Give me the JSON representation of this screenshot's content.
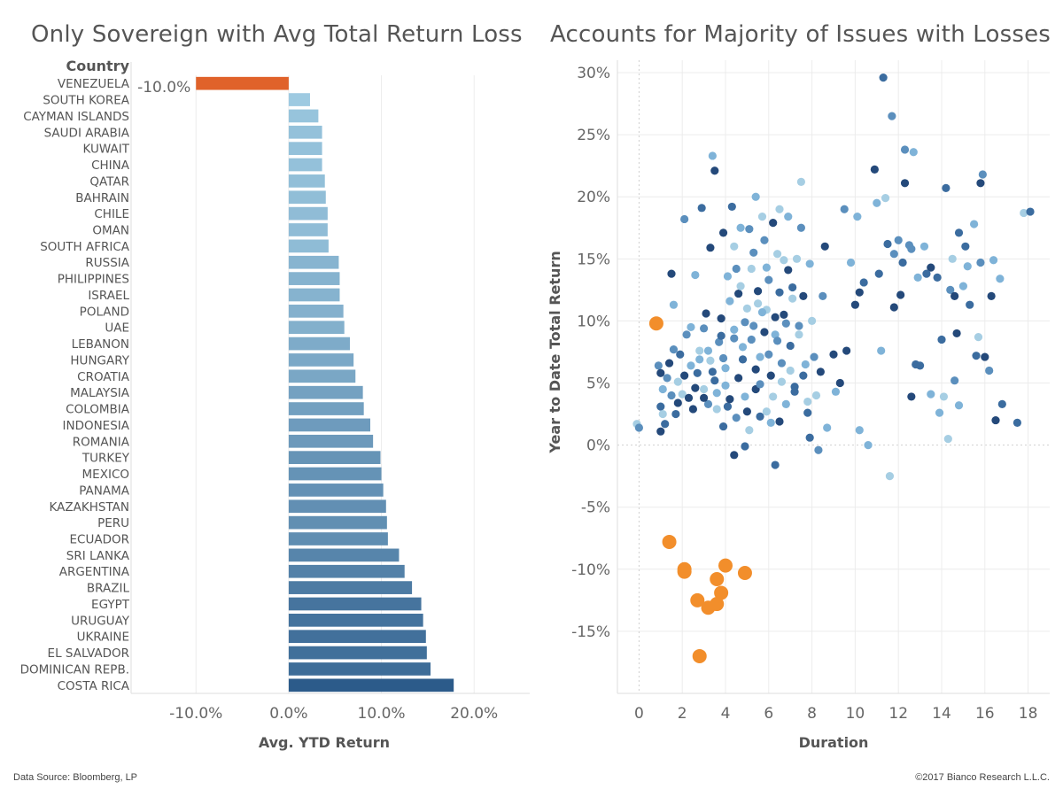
{
  "left_title": "Only Sovereign with Avg Total Return Loss",
  "right_title": "Accounts for Majority of Issues with Losses",
  "footer": {
    "source": "Data Source: Bloomberg, LP",
    "copyright": "©2017 Bianco Research L.L.C."
  },
  "colors": {
    "highlight": "#e0622a",
    "scatter_highlight": "#f28e2b",
    "bar_light": "#9ecae1",
    "bar_dark": "#2c5b8a"
  },
  "chart_data": [
    {
      "type": "bar",
      "orientation": "horizontal",
      "title": "Only Sovereign with Avg Total Return Loss",
      "row_header": "Country",
      "xlabel": "Avg. YTD Return",
      "xlim": [
        -17,
        26
      ],
      "x_ticks": [
        "-10.0%",
        "0.0%",
        "10.0%",
        "20.0%"
      ],
      "x_tick_values": [
        -10,
        0,
        10,
        20
      ],
      "data_label": "-10.0%",
      "grid": true,
      "categories": [
        "VENEZUELA",
        "SOUTH KOREA",
        "CAYMAN ISLANDS",
        "SAUDI ARABIA",
        "KUWAIT",
        "CHINA",
        "QATAR",
        "BAHRAIN",
        "CHILE",
        "OMAN",
        "SOUTH AFRICA",
        "RUSSIA",
        "PHILIPPINES",
        "ISRAEL",
        "POLAND",
        "UAE",
        "LEBANON",
        "HUNGARY",
        "CROATIA",
        "MALAYSIA",
        "COLOMBIA",
        "INDONESIA",
        "ROMANIA",
        "TURKEY",
        "MEXICO",
        "PANAMA",
        "KAZAKHSTAN",
        "PERU",
        "ECUADOR",
        "SRI LANKA",
        "ARGENTINA",
        "BRAZIL",
        "EGYPT",
        "URUGUAY",
        "UKRAINE",
        "EL SALVADOR",
        "DOMINICAN REPB.",
        "COSTA RICA"
      ],
      "values": [
        -10.0,
        2.3,
        3.2,
        3.6,
        3.6,
        3.6,
        3.9,
        4.0,
        4.2,
        4.2,
        4.3,
        5.4,
        5.5,
        5.5,
        5.9,
        6.0,
        6.6,
        7.0,
        7.2,
        8.0,
        8.1,
        8.8,
        9.1,
        9.9,
        10.0,
        10.2,
        10.5,
        10.6,
        10.7,
        11.9,
        12.5,
        13.3,
        14.3,
        14.5,
        14.8,
        14.9,
        15.3,
        17.8
      ]
    },
    {
      "type": "scatter",
      "title": "Accounts for Majority of Issues with Losses",
      "xlabel": "Duration",
      "ylabel": "Year to Date Total Return",
      "xlim": [
        -1,
        19
      ],
      "ylim": [
        -20,
        31
      ],
      "x_ticks": [
        "0",
        "2",
        "4",
        "6",
        "8",
        "10",
        "12",
        "14",
        "16",
        "18"
      ],
      "x_tick_values": [
        0,
        2,
        4,
        6,
        8,
        10,
        12,
        14,
        16,
        18
      ],
      "y_ticks": [
        "30%",
        "25%",
        "20%",
        "15%",
        "10%",
        "5%",
        "0%",
        "-5%",
        "-10%",
        "-15%"
      ],
      "y_tick_values": [
        30,
        25,
        20,
        15,
        10,
        5,
        0,
        -5,
        -10,
        -15
      ],
      "grid": true,
      "highlight_points": [
        [
          0.8,
          9.8
        ],
        [
          1.4,
          -7.8
        ],
        [
          2.1,
          -10.0
        ],
        [
          2.1,
          -10.2
        ],
        [
          4.0,
          -9.7
        ],
        [
          3.6,
          -10.8
        ],
        [
          4.9,
          -10.3
        ],
        [
          3.8,
          -11.9
        ],
        [
          2.7,
          -12.5
        ],
        [
          3.2,
          -13.1
        ],
        [
          3.6,
          -12.8
        ],
        [
          2.8,
          -17.0
        ]
      ],
      "points": [
        [
          -0.1,
          1.7
        ],
        [
          0.0,
          1.4
        ],
        [
          0.9,
          6.4
        ],
        [
          1.0,
          5.8
        ],
        [
          1.1,
          4.5
        ],
        [
          1.0,
          3.1
        ],
        [
          1.1,
          2.5
        ],
        [
          1.2,
          1.7
        ],
        [
          1.0,
          1.1
        ],
        [
          1.3,
          5.4
        ],
        [
          1.4,
          6.6
        ],
        [
          1.5,
          4.0
        ],
        [
          1.5,
          13.8
        ],
        [
          1.6,
          11.3
        ],
        [
          1.7,
          2.5
        ],
        [
          1.8,
          5.1
        ],
        [
          1.9,
          7.3
        ],
        [
          2.0,
          4.1
        ],
        [
          2.1,
          18.2
        ],
        [
          2.1,
          5.6
        ],
        [
          2.2,
          8.9
        ],
        [
          2.3,
          3.8
        ],
        [
          2.4,
          6.4
        ],
        [
          2.5,
          2.9
        ],
        [
          2.6,
          13.7
        ],
        [
          2.7,
          5.8
        ],
        [
          2.8,
          7.6
        ],
        [
          2.9,
          19.1
        ],
        [
          3.0,
          4.5
        ],
        [
          3.0,
          9.4
        ],
        [
          3.1,
          10.6
        ],
        [
          3.2,
          3.3
        ],
        [
          3.3,
          15.9
        ],
        [
          3.4,
          23.3
        ],
        [
          3.5,
          22.1
        ],
        [
          3.3,
          6.8
        ],
        [
          3.5,
          5.2
        ],
        [
          3.6,
          2.9
        ],
        [
          3.7,
          8.3
        ],
        [
          3.8,
          10.2
        ],
        [
          3.9,
          7.0
        ],
        [
          3.9,
          17.1
        ],
        [
          4.0,
          4.8
        ],
        [
          4.1,
          3.1
        ],
        [
          4.2,
          11.6
        ],
        [
          4.3,
          19.2
        ],
        [
          4.4,
          16.0
        ],
        [
          4.4,
          8.6
        ],
        [
          4.4,
          -0.8
        ],
        [
          4.5,
          14.2
        ],
        [
          4.6,
          12.2
        ],
        [
          4.7,
          17.5
        ],
        [
          4.8,
          6.9
        ],
        [
          4.9,
          3.9
        ],
        [
          4.9,
          -0.1
        ],
        [
          5.0,
          11.0
        ],
        [
          5.1,
          17.4
        ],
        [
          5.2,
          14.2
        ],
        [
          5.3,
          9.6
        ],
        [
          5.4,
          4.5
        ],
        [
          5.4,
          20.0
        ],
        [
          5.5,
          12.4
        ],
        [
          5.6,
          7.1
        ],
        [
          5.6,
          2.3
        ],
        [
          5.7,
          18.4
        ],
        [
          5.8,
          16.5
        ],
        [
          5.9,
          10.9
        ],
        [
          6.0,
          13.3
        ],
        [
          6.1,
          5.6
        ],
        [
          6.1,
          1.8
        ],
        [
          6.2,
          17.9
        ],
        [
          6.3,
          8.9
        ],
        [
          6.3,
          -1.6
        ],
        [
          6.4,
          15.4
        ],
        [
          6.5,
          12.3
        ],
        [
          6.5,
          19.0
        ],
        [
          6.6,
          6.6
        ],
        [
          6.7,
          10.5
        ],
        [
          6.8,
          3.3
        ],
        [
          6.9,
          14.1
        ],
        [
          6.9,
          18.4
        ],
        [
          7.0,
          8.0
        ],
        [
          7.1,
          11.8
        ],
        [
          7.2,
          4.3
        ],
        [
          7.3,
          15.0
        ],
        [
          7.4,
          9.6
        ],
        [
          7.5,
          21.2
        ],
        [
          7.5,
          17.5
        ],
        [
          7.6,
          12.0
        ],
        [
          7.7,
          6.5
        ],
        [
          7.8,
          2.6
        ],
        [
          7.9,
          14.6
        ],
        [
          7.9,
          0.6
        ],
        [
          8.0,
          10.0
        ],
        [
          8.1,
          7.1
        ],
        [
          8.2,
          4.0
        ],
        [
          8.3,
          -0.4
        ],
        [
          8.4,
          5.9
        ],
        [
          8.5,
          12.0
        ],
        [
          8.6,
          16.0
        ],
        [
          8.7,
          1.4
        ],
        [
          9.0,
          7.3
        ],
        [
          9.1,
          4.3
        ],
        [
          9.3,
          5.0
        ],
        [
          9.5,
          19.0
        ],
        [
          9.6,
          7.6
        ],
        [
          9.8,
          14.7
        ],
        [
          10.0,
          11.3
        ],
        [
          10.1,
          18.4
        ],
        [
          10.2,
          12.3
        ],
        [
          10.2,
          1.2
        ],
        [
          10.4,
          13.1
        ],
        [
          10.6,
          0.0
        ],
        [
          10.9,
          22.2
        ],
        [
          11.0,
          19.5
        ],
        [
          11.1,
          13.8
        ],
        [
          11.2,
          7.6
        ],
        [
          11.3,
          29.6
        ],
        [
          11.4,
          19.9
        ],
        [
          11.5,
          16.2
        ],
        [
          11.6,
          -2.5
        ],
        [
          11.7,
          26.5
        ],
        [
          11.8,
          11.1
        ],
        [
          12.0,
          16.5
        ],
        [
          12.1,
          12.1
        ],
        [
          12.3,
          23.8
        ],
        [
          12.3,
          21.1
        ],
        [
          12.5,
          16.1
        ],
        [
          12.6,
          3.9
        ],
        [
          12.7,
          23.6
        ],
        [
          12.8,
          6.5
        ],
        [
          12.9,
          13.5
        ],
        [
          13.0,
          6.4
        ],
        [
          13.2,
          16.0
        ],
        [
          13.5,
          14.3
        ],
        [
          13.5,
          4.1
        ],
        [
          13.8,
          13.5
        ],
        [
          13.9,
          2.6
        ],
        [
          14.0,
          8.5
        ],
        [
          14.1,
          3.9
        ],
        [
          14.2,
          20.7
        ],
        [
          14.3,
          0.5
        ],
        [
          14.4,
          12.5
        ],
        [
          14.5,
          15.0
        ],
        [
          14.6,
          5.2
        ],
        [
          14.7,
          9.0
        ],
        [
          14.8,
          3.2
        ],
        [
          14.8,
          17.1
        ],
        [
          15.0,
          12.8
        ],
        [
          15.1,
          16.0
        ],
        [
          15.2,
          14.4
        ],
        [
          15.3,
          11.3
        ],
        [
          15.5,
          17.8
        ],
        [
          15.6,
          7.2
        ],
        [
          15.7,
          8.7
        ],
        [
          15.8,
          14.7
        ],
        [
          15.8,
          21.1
        ],
        [
          15.9,
          21.8
        ],
        [
          16.0,
          7.1
        ],
        [
          16.2,
          6.0
        ],
        [
          16.3,
          12.0
        ],
        [
          16.4,
          14.9
        ],
        [
          16.5,
          2.0
        ],
        [
          16.7,
          13.4
        ],
        [
          16.8,
          3.3
        ],
        [
          17.5,
          1.8
        ],
        [
          17.8,
          18.7
        ],
        [
          18.1,
          18.8
        ],
        [
          3.2,
          7.6
        ],
        [
          3.4,
          5.9
        ],
        [
          3.6,
          4.2
        ],
        [
          3.8,
          8.8
        ],
        [
          4.0,
          6.2
        ],
        [
          4.2,
          3.7
        ],
        [
          4.4,
          9.3
        ],
        [
          4.6,
          5.4
        ],
        [
          4.8,
          7.9
        ],
        [
          5.0,
          2.7
        ],
        [
          5.2,
          8.5
        ],
        [
          5.4,
          6.1
        ],
        [
          5.6,
          4.9
        ],
        [
          5.8,
          9.1
        ],
        [
          6.0,
          7.3
        ],
        [
          6.2,
          3.9
        ],
        [
          6.4,
          8.4
        ],
        [
          6.6,
          5.1
        ],
        [
          6.8,
          9.8
        ],
        [
          7.0,
          6.0
        ],
        [
          7.2,
          4.7
        ],
        [
          7.4,
          8.9
        ],
        [
          7.6,
          5.6
        ],
        [
          7.8,
          3.5
        ],
        [
          2.4,
          9.5
        ],
        [
          2.6,
          4.6
        ],
        [
          2.8,
          6.9
        ],
        [
          3.0,
          3.8
        ],
        [
          1.6,
          7.7
        ],
        [
          1.8,
          3.4
        ],
        [
          5.3,
          15.5
        ],
        [
          5.9,
          14.3
        ],
        [
          6.7,
          14.9
        ],
        [
          7.1,
          12.7
        ],
        [
          4.1,
          13.6
        ],
        [
          4.7,
          12.8
        ],
        [
          5.5,
          11.4
        ],
        [
          6.3,
          10.3
        ],
        [
          4.9,
          9.9
        ],
        [
          5.7,
          10.7
        ],
        [
          12.2,
          14.7
        ],
        [
          13.3,
          13.8
        ],
        [
          14.6,
          12.0
        ],
        [
          11.8,
          15.4
        ],
        [
          12.6,
          15.8
        ],
        [
          3.9,
          1.5
        ],
        [
          4.5,
          2.2
        ],
        [
          5.1,
          1.2
        ],
        [
          5.9,
          2.7
        ],
        [
          6.5,
          1.9
        ]
      ]
    }
  ]
}
